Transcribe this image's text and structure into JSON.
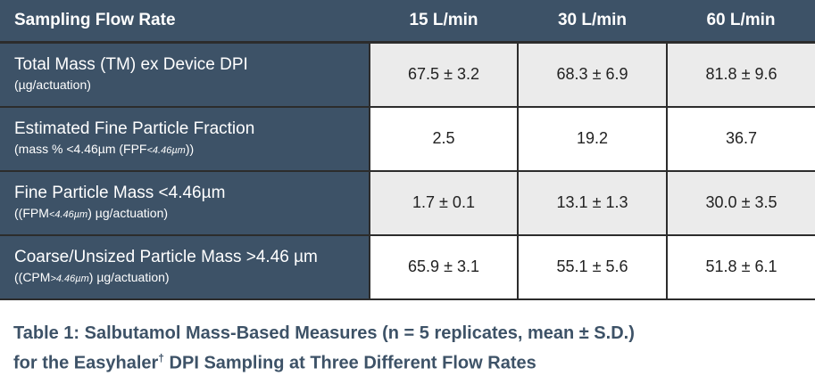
{
  "table": {
    "header": {
      "label": "Sampling Flow Rate",
      "columns": [
        "15 L/min",
        "30 L/min",
        "60 L/min"
      ]
    },
    "rows": [
      {
        "title": "Total Mass (TM) ex Device DPI",
        "sub_pre": "(µg/actuation)",
        "sub_italic": "",
        "sub_post": "",
        "values": [
          "67.5 ± 3.2",
          "68.3 ± 6.9",
          "81.8 ± 9.6"
        ]
      },
      {
        "title": "Estimated Fine Particle Fraction",
        "sub_pre": "(mass % <4.46µm (FPF",
        "sub_italic": "<4.46µm",
        "sub_post": "))",
        "values": [
          "2.5",
          "19.2",
          "36.7"
        ]
      },
      {
        "title": "Fine Particle Mass <4.46µm",
        "sub_pre": "((FPM",
        "sub_italic": "<4.46µm",
        "sub_post": ") µg/actuation)",
        "values": [
          "1.7 ± 0.1",
          "13.1 ± 1.3",
          "30.0 ± 3.5"
        ]
      },
      {
        "title": "Coarse/Unsized Particle Mass >4.46 µm",
        "sub_pre": "((CPM",
        "sub_italic": ">4.46µm",
        "sub_post": ") µg/actuation)",
        "values": [
          "65.9 ± 3.1",
          "55.1 ± 5.6",
          "51.8 ± 6.1"
        ]
      }
    ]
  },
  "caption": {
    "line1": "Table 1: Salbutamol Mass-Based Measures (n = 5 replicates, mean ± S.D.)",
    "line2_pre": "for the Easyhaler",
    "line2_sup": "†",
    "line2_post": " DPI Sampling at Three Different Flow Rates"
  }
}
